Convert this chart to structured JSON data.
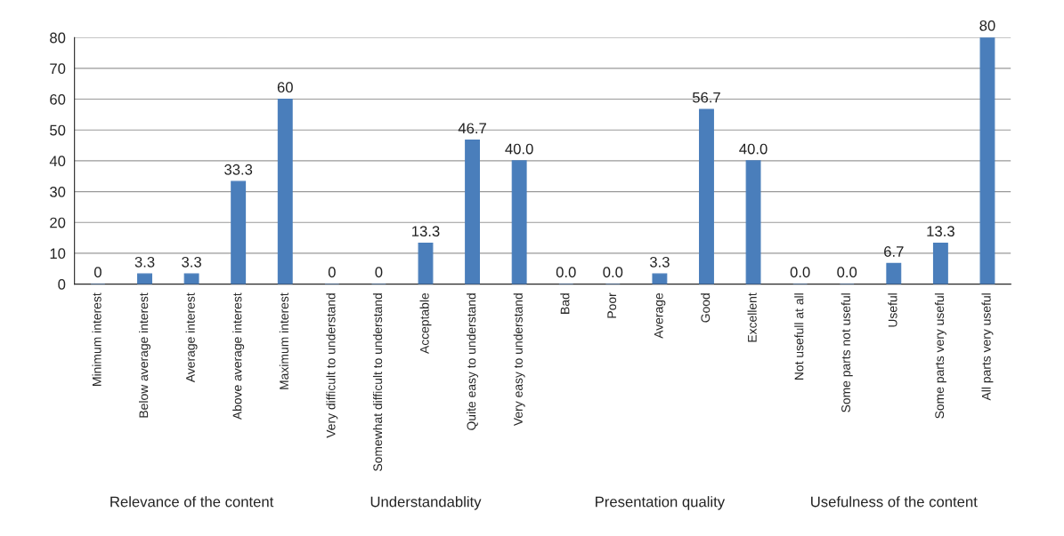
{
  "chart_data": {
    "type": "bar",
    "categories": [
      "Minimum interest",
      "Below average interest",
      "Average interest",
      "Above average interest",
      "Maximum interest",
      "Very difficult to understand",
      "Somewhat difficult to understand",
      "Acceptable",
      "Quite easy to understand",
      "Very easy to understand",
      "Bad",
      "Poor",
      "Average",
      "Good",
      "Excellent",
      "Not usefull at all",
      "Some parts not useful",
      "Useful",
      "Some parts very useful",
      "All parts very useful"
    ],
    "values": [
      0,
      3.3,
      3.3,
      33.3,
      60,
      0,
      0,
      13.3,
      46.7,
      40.0,
      0,
      0,
      3.3,
      56.7,
      40.0,
      0,
      0,
      6.7,
      13.3,
      80
    ],
    "value_labels": [
      "0",
      "3.3",
      "3.3",
      "33.3",
      "60",
      "0",
      "0",
      "13.3",
      "46.7",
      "40.0",
      "0.0",
      "0.0",
      "3.3",
      "56.7",
      "40.0",
      "0.0",
      "0.0",
      "6.7",
      "13.3",
      "80"
    ],
    "color": "#4a7ebb",
    "ylim": [
      0,
      80
    ],
    "yticks": [
      0,
      10,
      20,
      30,
      40,
      50,
      60,
      70,
      80
    ],
    "grid": "y",
    "annotations": [
      "Relevance of the content",
      "Understandablity",
      "Presentation quality",
      "Usefulness of the content"
    ]
  }
}
